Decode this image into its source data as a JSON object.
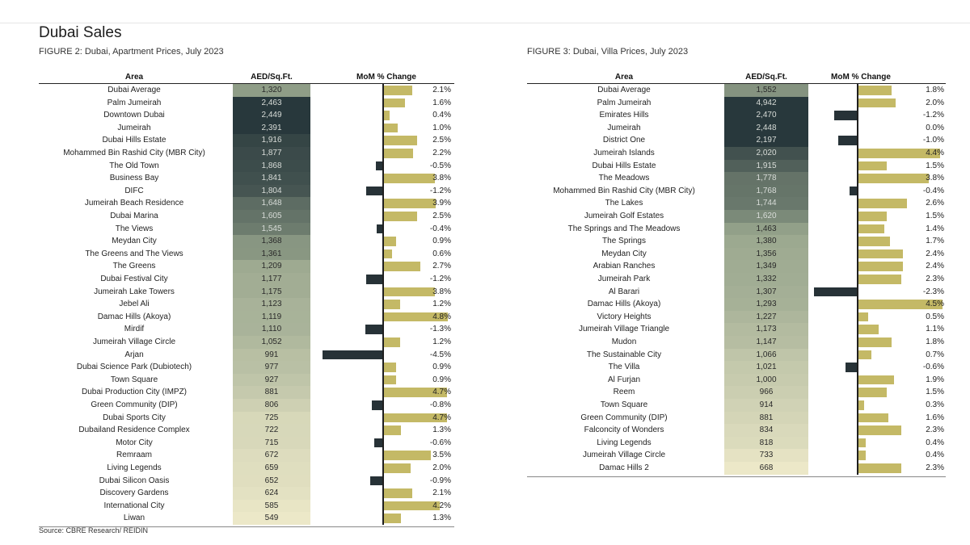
{
  "page": {
    "title": "Dubai Sales",
    "source": "Source: CBRE Research/ REIDIN"
  },
  "colors": {
    "bar_positive": "#c4b966",
    "bar_negative": "#273237",
    "price_dark": "#2a3a3e",
    "price_light": "#ece8c8"
  },
  "chart_data": [
    {
      "type": "bar",
      "caption": "FIGURE 2: Dubai, Apartment Prices, July 2023",
      "columns": [
        "Area",
        "AED/Sq.Ft.",
        "MoM % Change"
      ],
      "rows": [
        {
          "area": "Dubai Average",
          "price": "1,320",
          "change": 2.1,
          "change_label": "2.1%"
        },
        {
          "area": "Palm Jumeirah",
          "price": "2,463",
          "change": 1.6,
          "change_label": "1.6%"
        },
        {
          "area": "Downtown Dubai",
          "price": "2,449",
          "change": 0.4,
          "change_label": "0.4%"
        },
        {
          "area": "Jumeirah",
          "price": "2,391",
          "change": 1.0,
          "change_label": "1.0%"
        },
        {
          "area": "Dubai Hills Estate",
          "price": "1,916",
          "change": 2.5,
          "change_label": "2.5%"
        },
        {
          "area": "Mohammed Bin Rashid City (MBR City)",
          "price": "1,877",
          "change": 2.2,
          "change_label": "2.2%"
        },
        {
          "area": "The Old Town",
          "price": "1,868",
          "change": -0.5,
          "change_label": "-0.5%"
        },
        {
          "area": "Business Bay",
          "price": "1,841",
          "change": 3.8,
          "change_label": "3.8%"
        },
        {
          "area": "DIFC",
          "price": "1,804",
          "change": -1.2,
          "change_label": "-1.2%"
        },
        {
          "area": "Jumeirah Beach Residence",
          "price": "1,648",
          "change": 3.9,
          "change_label": "3.9%"
        },
        {
          "area": "Dubai Marina",
          "price": "1,605",
          "change": 2.5,
          "change_label": "2.5%"
        },
        {
          "area": "The Views",
          "price": "1,545",
          "change": -0.4,
          "change_label": "-0.4%"
        },
        {
          "area": "Meydan City",
          "price": "1,368",
          "change": 0.9,
          "change_label": "0.9%"
        },
        {
          "area": "The Greens and The Views",
          "price": "1,361",
          "change": 0.6,
          "change_label": "0.6%"
        },
        {
          "area": "The Greens",
          "price": "1,209",
          "change": 2.7,
          "change_label": "2.7%"
        },
        {
          "area": "Dubai Festival City",
          "price": "1,177",
          "change": -1.2,
          "change_label": "-1.2%"
        },
        {
          "area": "Jumeirah Lake Towers",
          "price": "1,175",
          "change": 3.8,
          "change_label": "3.8%"
        },
        {
          "area": "Jebel Ali",
          "price": "1,123",
          "change": 1.2,
          "change_label": "1.2%"
        },
        {
          "area": "Damac Hills (Akoya)",
          "price": "1,119",
          "change": 4.8,
          "change_label": "4.8%"
        },
        {
          "area": "Mirdif",
          "price": "1,110",
          "change": -1.3,
          "change_label": "-1.3%"
        },
        {
          "area": "Jumeirah Village Circle",
          "price": "1,052",
          "change": 1.2,
          "change_label": "1.2%"
        },
        {
          "area": "Arjan",
          "price": "991",
          "change": -4.5,
          "change_label": "-4.5%"
        },
        {
          "area": "Dubai Science Park (Dubiotech)",
          "price": "977",
          "change": 0.9,
          "change_label": "0.9%"
        },
        {
          "area": "Town Square",
          "price": "927",
          "change": 0.9,
          "change_label": "0.9%"
        },
        {
          "area": "Dubai Production City (IMPZ)",
          "price": "881",
          "change": 4.7,
          "change_label": "4.7%"
        },
        {
          "area": "Green Community (DIP)",
          "price": "806",
          "change": -0.8,
          "change_label": "-0.8%"
        },
        {
          "area": "Dubai Sports City",
          "price": "725",
          "change": 4.7,
          "change_label": "4.7%"
        },
        {
          "area": "Dubailand Residence Complex",
          "price": "722",
          "change": 1.3,
          "change_label": "1.3%"
        },
        {
          "area": "Motor City",
          "price": "715",
          "change": -0.6,
          "change_label": "-0.6%"
        },
        {
          "area": "Remraam",
          "price": "672",
          "change": 3.5,
          "change_label": "3.5%"
        },
        {
          "area": "Living Legends",
          "price": "659",
          "change": 2.0,
          "change_label": "2.0%"
        },
        {
          "area": "Dubai Silicon Oasis",
          "price": "652",
          "change": -0.9,
          "change_label": "-0.9%"
        },
        {
          "area": "Discovery Gardens",
          "price": "624",
          "change": 2.1,
          "change_label": "2.1%"
        },
        {
          "area": "International City",
          "price": "585",
          "change": 4.2,
          "change_label": "4.2%"
        },
        {
          "area": "Liwan",
          "price": "549",
          "change": 1.3,
          "change_label": "1.3%"
        }
      ]
    },
    {
      "type": "bar",
      "caption": "FIGURE 3: Dubai, Villa Prices, July 2023",
      "columns": [
        "Area",
        "AED/Sq.Ft.",
        "MoM % Change"
      ],
      "rows": [
        {
          "area": "Dubai Average",
          "price": "1,552",
          "change": 1.8,
          "change_label": "1.8%"
        },
        {
          "area": "Palm Jumeirah",
          "price": "4,942",
          "change": 2.0,
          "change_label": "2.0%"
        },
        {
          "area": "Emirates Hills",
          "price": "2,470",
          "change": -1.2,
          "change_label": "-1.2%"
        },
        {
          "area": "Jumeirah",
          "price": "2,448",
          "change": 0.0,
          "change_label": "0.0%"
        },
        {
          "area": "District One",
          "price": "2,197",
          "change": -1.0,
          "change_label": "-1.0%"
        },
        {
          "area": "Jumeirah Islands",
          "price": "2,020",
          "change": 4.4,
          "change_label": "4.4%"
        },
        {
          "area": "Dubai Hills Estate",
          "price": "1,915",
          "change": 1.5,
          "change_label": "1.5%"
        },
        {
          "area": "The Meadows",
          "price": "1,778",
          "change": 3.8,
          "change_label": "3.8%"
        },
        {
          "area": "Mohammed Bin Rashid City (MBR City)",
          "price": "1,768",
          "change": -0.4,
          "change_label": "-0.4%"
        },
        {
          "area": "The Lakes",
          "price": "1,744",
          "change": 2.6,
          "change_label": "2.6%"
        },
        {
          "area": "Jumeirah Golf Estates",
          "price": "1,620",
          "change": 1.5,
          "change_label": "1.5%"
        },
        {
          "area": "The Springs and The Meadows",
          "price": "1,463",
          "change": 1.4,
          "change_label": "1.4%"
        },
        {
          "area": "The Springs",
          "price": "1,380",
          "change": 1.7,
          "change_label": "1.7%"
        },
        {
          "area": "Meydan City",
          "price": "1,356",
          "change": 2.4,
          "change_label": "2.4%"
        },
        {
          "area": "Arabian Ranches",
          "price": "1,349",
          "change": 2.4,
          "change_label": "2.4%"
        },
        {
          "area": "Jumeirah Park",
          "price": "1,332",
          "change": 2.3,
          "change_label": "2.3%"
        },
        {
          "area": "Al Barari",
          "price": "1,307",
          "change": -2.3,
          "change_label": "-2.3%"
        },
        {
          "area": "Damac Hills (Akoya)",
          "price": "1,293",
          "change": 4.5,
          "change_label": "4.5%"
        },
        {
          "area": "Victory Heights",
          "price": "1,227",
          "change": 0.5,
          "change_label": "0.5%"
        },
        {
          "area": "Jumeirah Village Triangle",
          "price": "1,173",
          "change": 1.1,
          "change_label": "1.1%"
        },
        {
          "area": "Mudon",
          "price": "1,147",
          "change": 1.8,
          "change_label": "1.8%"
        },
        {
          "area": "The Sustainable City",
          "price": "1,066",
          "change": 0.7,
          "change_label": "0.7%"
        },
        {
          "area": "The Villa",
          "price": "1,021",
          "change": -0.6,
          "change_label": "-0.6%"
        },
        {
          "area": "Al Furjan",
          "price": "1,000",
          "change": 1.9,
          "change_label": "1.9%"
        },
        {
          "area": "Reem",
          "price": "966",
          "change": 1.5,
          "change_label": "1.5%"
        },
        {
          "area": "Town Square",
          "price": "914",
          "change": 0.3,
          "change_label": "0.3%"
        },
        {
          "area": "Green Community (DIP)",
          "price": "881",
          "change": 1.6,
          "change_label": "1.6%"
        },
        {
          "area": "Falconcity of Wonders",
          "price": "834",
          "change": 2.3,
          "change_label": "2.3%"
        },
        {
          "area": "Living Legends",
          "price": "818",
          "change": 0.4,
          "change_label": "0.4%"
        },
        {
          "area": "Jumeirah Village Circle",
          "price": "733",
          "change": 0.4,
          "change_label": "0.4%"
        },
        {
          "area": "Damac Hills 2",
          "price": "668",
          "change": 2.3,
          "change_label": "2.3%"
        }
      ]
    }
  ]
}
